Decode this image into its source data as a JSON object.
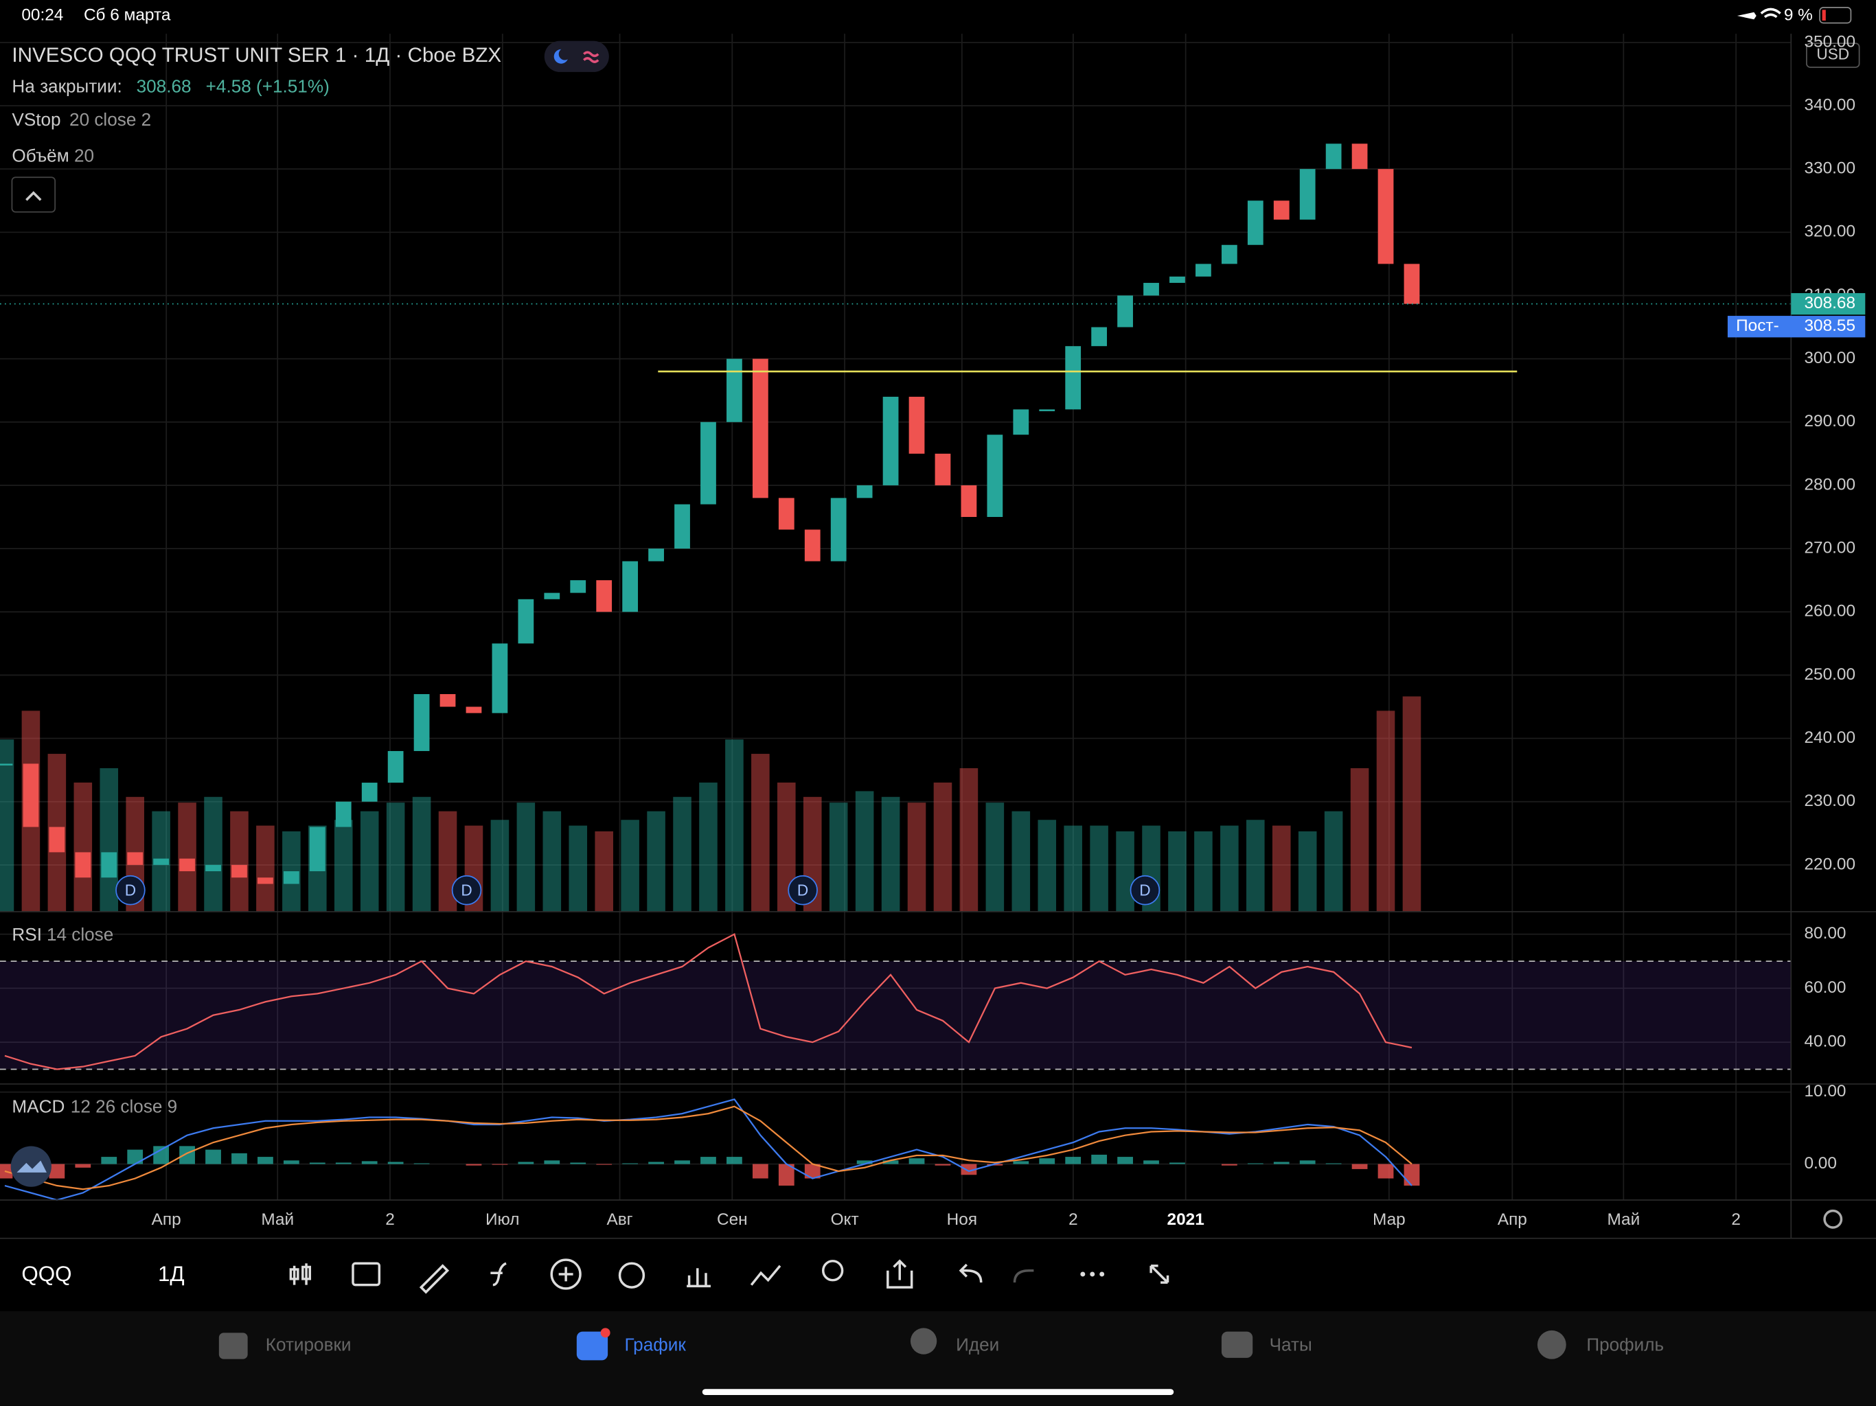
{
  "status_bar": {
    "time": "00:24",
    "date": "Сб 6 марта",
    "battery": "9 %"
  },
  "header": {
    "title": "INVESCO QQQ TRUST UNIT SER 1 · 1Д · Cboe BZX",
    "close_label": "На закрытии:",
    "close": "308.68",
    "change": "+4.58 (+1.51%)",
    "indicators": [
      {
        "name": "VStop",
        "params": "20 close 2"
      },
      {
        "name": "Объём",
        "params": "20"
      }
    ]
  },
  "chart_data": {
    "type": "candlestick",
    "x_labels": [
      "Апр",
      "Май",
      "2",
      "Июл",
      "Авг",
      "Сен",
      "Окт",
      "Ноя",
      "2",
      "2021",
      "Мар",
      "Апр",
      "Май",
      "2"
    ],
    "series": [
      {
        "name": "QQQ",
        "up_color": "#26a69a",
        "down_color": "#ef5350",
        "values": [
          236,
          226,
          222,
          218,
          222,
          220,
          221,
          219,
          220,
          218,
          217,
          219,
          226,
          230,
          233,
          238,
          247,
          245,
          244,
          255,
          262,
          263,
          265,
          260,
          268,
          270,
          277,
          290,
          300,
          278,
          273,
          268,
          278,
          280,
          294,
          285,
          280,
          275,
          288,
          292,
          292,
          302,
          305,
          310,
          312,
          313,
          315,
          318,
          325,
          322,
          330,
          334,
          330,
          315,
          308.68
        ]
      }
    ],
    "volume": [
      60,
      70,
      55,
      45,
      50,
      40,
      35,
      38,
      40,
      35,
      30,
      28,
      30,
      32,
      35,
      38,
      40,
      35,
      30,
      32,
      38,
      35,
      30,
      28,
      32,
      35,
      40,
      45,
      60,
      55,
      45,
      40,
      38,
      42,
      40,
      38,
      45,
      50,
      38,
      35,
      32,
      30,
      30,
      28,
      30,
      28,
      28,
      30,
      32,
      30,
      28,
      35,
      50,
      70,
      75
    ],
    "ylim": [
      212.6,
      351
    ],
    "yticks": [
      {
        "value": 220,
        "label": "220.00"
      },
      {
        "value": 230,
        "label": "230.00"
      },
      {
        "value": 240,
        "label": "240.00"
      },
      {
        "value": 250,
        "label": "250.00"
      },
      {
        "value": 260,
        "label": "260.00"
      },
      {
        "value": 270,
        "label": "270.00"
      },
      {
        "value": 280,
        "label": "280.00"
      },
      {
        "value": 290,
        "label": "290.00"
      },
      {
        "value": 300,
        "label": "300.00"
      },
      {
        "value": 310,
        "label": "310.00"
      },
      {
        "value": 320,
        "label": "320.00"
      },
      {
        "value": 330,
        "label": "330.00"
      },
      {
        "value": 340,
        "label": "340.00"
      },
      {
        "value": 350,
        "label": "350.00"
      }
    ],
    "currency": "USD",
    "last_price": {
      "value": 308.68,
      "label": "308.68"
    },
    "post_price": {
      "name": "Пост-",
      "value": 308.55,
      "label": "308.55"
    },
    "support_line": {
      "value": 298,
      "color": "#e6e05a"
    },
    "dividends": [
      "D",
      "D",
      "D",
      "D"
    ],
    "grid": true,
    "rsi": {
      "title": "RSI",
      "params": "14 close",
      "color": "#f06060",
      "ylim": [
        25,
        87
      ],
      "yticks": [
        {
          "value": 40,
          "label": "40.00"
        },
        {
          "value": 60,
          "label": "60.00"
        },
        {
          "value": 80,
          "label": "80.00"
        }
      ],
      "bands": [
        30,
        70
      ],
      "values": [
        35,
        32,
        30,
        31,
        33,
        35,
        42,
        45,
        50,
        52,
        55,
        57,
        58,
        60,
        62,
        65,
        70,
        60,
        58,
        65,
        70,
        68,
        64,
        58,
        62,
        65,
        68,
        75,
        80,
        45,
        42,
        40,
        44,
        55,
        65,
        52,
        48,
        40,
        60,
        62,
        60,
        64,
        70,
        65,
        67,
        65,
        62,
        68,
        60,
        66,
        68,
        66,
        58,
        40,
        38
      ]
    },
    "macd": {
      "title": "MACD",
      "params": "12 26 close 9",
      "ylim": [
        -5,
        10.8
      ],
      "yticks": [
        {
          "value": 0,
          "label": "0.00"
        },
        {
          "value": 10,
          "label": "10.00"
        }
      ],
      "macd_color": "#3d7bf0",
      "signal_color": "#f08a3c",
      "values": [
        -3,
        -4,
        -5,
        -4,
        -2,
        0,
        2,
        4,
        5,
        5.5,
        6,
        6,
        6,
        6.2,
        6.5,
        6.5,
        6.3,
        6,
        5.5,
        5.5,
        6,
        6.5,
        6.4,
        6,
        6.2,
        6.5,
        7,
        8,
        9,
        4,
        0,
        -2,
        -1,
        0,
        1,
        2,
        1,
        -1,
        0,
        1,
        2,
        3,
        4.5,
        5,
        5,
        4.8,
        4.5,
        4.2,
        4.5,
        5,
        5.5,
        5.2,
        4,
        1,
        -3
      ],
      "signal": [
        -1,
        -2,
        -3,
        -3.5,
        -3,
        -2,
        -0.5,
        1.5,
        3,
        4,
        5,
        5.5,
        5.8,
        6,
        6.1,
        6.2,
        6.2,
        6,
        5.7,
        5.6,
        5.7,
        6,
        6.2,
        6.1,
        6.1,
        6.2,
        6.5,
        7,
        8,
        6,
        3,
        0,
        -1,
        -0.5,
        0.5,
        1.2,
        1.2,
        0.5,
        0.2,
        0.6,
        1.2,
        2,
        3.2,
        4,
        4.5,
        4.6,
        4.5,
        4.4,
        4.4,
        4.7,
        5,
        5.1,
        4.7,
        3,
        0
      ],
      "histogram": [
        -2,
        -2,
        -2,
        -0.5,
        1,
        2,
        2.5,
        2.5,
        2,
        1.5,
        1,
        0.5,
        0.2,
        0.2,
        0.4,
        0.3,
        0.1,
        0,
        -0.2,
        -0.1,
        0.3,
        0.5,
        0.2,
        -0.1,
        0.1,
        0.3,
        0.5,
        1,
        1,
        -2,
        -3,
        -2,
        0,
        0.5,
        0.5,
        0.8,
        -0.2,
        -1.5,
        -0.2,
        0.4,
        0.8,
        1,
        1.3,
        1,
        0.5,
        0.2,
        0,
        -0.2,
        0.1,
        0.3,
        0.5,
        0.1,
        -0.7,
        -2,
        -3
      ]
    }
  },
  "toolbar": {
    "symbol": "QQQ",
    "interval": "1Д"
  },
  "tabs": [
    "Котировки",
    "График",
    "Идеи",
    "Чаты",
    "Профиль"
  ]
}
